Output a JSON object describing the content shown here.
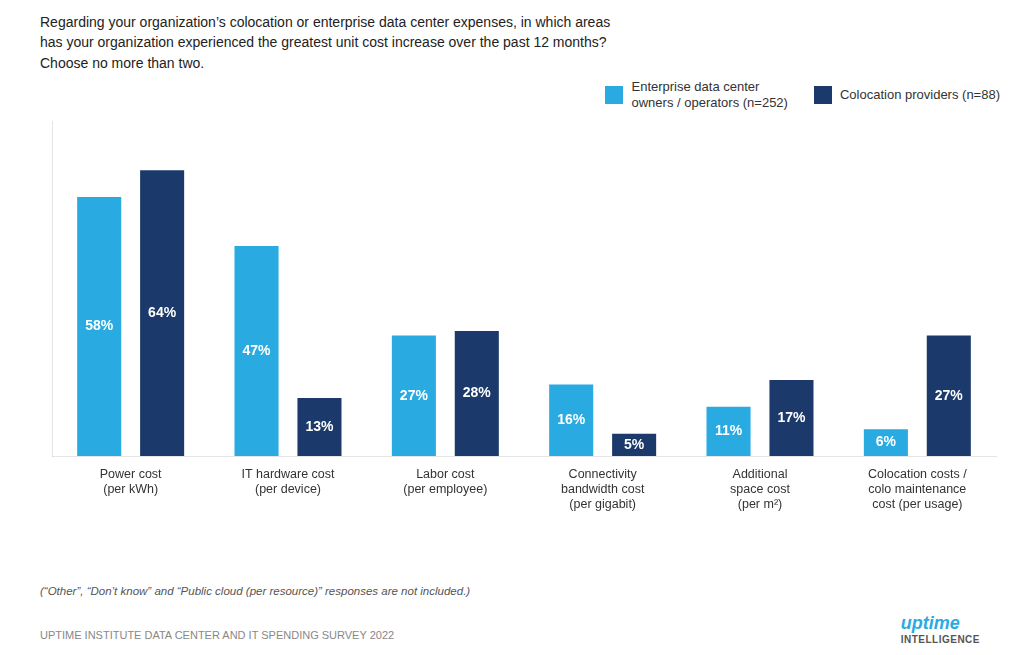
{
  "chart_data": {
    "type": "bar",
    "title": "Regarding your organization’s colocation or enterprise data center expenses, in which areas\nhas your organization experienced the greatest unit cost increase over the past 12 months?\nChoose no more than two.",
    "categories": [
      "Power cost\n(per kWh)",
      "IT hardware cost\n(per device)",
      "Labor cost\n(per employee)",
      "Connectivity\nbandwidth cost\n(per gigabit)",
      "Additional\nspace cost\n(per m²)",
      "Colocation costs /\ncolo maintenance\ncost (per usage)"
    ],
    "series": [
      {
        "name": "Enterprise data center\nowners / operators (n=252)",
        "color": "#29ABE2",
        "values": [
          58,
          47,
          27,
          16,
          11,
          6
        ],
        "value_labels": [
          "58%",
          "47%",
          "27%",
          "16%",
          "11%",
          "6%"
        ]
      },
      {
        "name": "Colocation providers (n=88)",
        "color": "#1B3A6B",
        "values": [
          64,
          13,
          28,
          5,
          17,
          27
        ],
        "value_labels": [
          "64%",
          "13%",
          "28%",
          "5%",
          "17%",
          "27%"
        ]
      }
    ],
    "ylim": [
      0,
      75
    ],
    "grid": false,
    "legend": "upper right",
    "data_labels": true,
    "tick_labels": "x",
    "annotations": [
      "(“Other”, “Don’t know” and “Public cloud (per resource)” responses are not included.)",
      "UPTIME INSTITUTE DATA CENTER AND IT SPENDING SURVEY 2022",
      "uptime",
      "INTELLIGENCE"
    ]
  }
}
